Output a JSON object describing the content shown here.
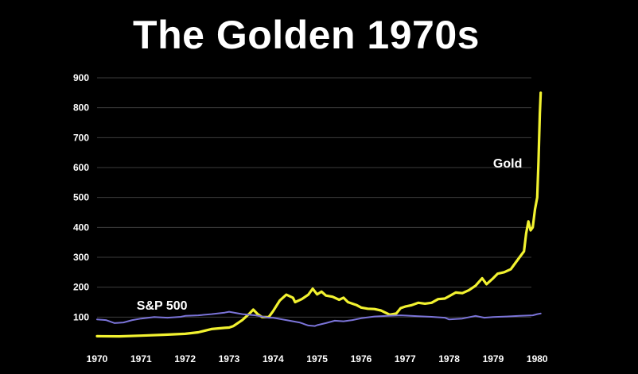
{
  "chart_data": {
    "type": "line",
    "title": "The Golden 1970s",
    "xlabel": "",
    "ylabel": "",
    "xlim": [
      1970,
      1980.3
    ],
    "ylim": [
      0,
      900
    ],
    "x_ticks": [
      1970,
      1971,
      1972,
      1973,
      1974,
      1975,
      1976,
      1977,
      1978,
      1979,
      1980
    ],
    "y_ticks": [
      100,
      200,
      300,
      400,
      500,
      600,
      700,
      800,
      900
    ],
    "grid": true,
    "series": [
      {
        "name": "Gold",
        "color": "#f2f230",
        "label_at": [
          1979.0,
          600
        ],
        "points": [
          [
            1970.0,
            36
          ],
          [
            1970.5,
            35.5
          ],
          [
            1971.0,
            38
          ],
          [
            1971.5,
            41
          ],
          [
            1972.0,
            44
          ],
          [
            1972.3,
            49
          ],
          [
            1972.6,
            60
          ],
          [
            1972.9,
            64
          ],
          [
            1973.0,
            65
          ],
          [
            1973.1,
            70
          ],
          [
            1973.3,
            90
          ],
          [
            1973.45,
            110
          ],
          [
            1973.55,
            125
          ],
          [
            1973.65,
            110
          ],
          [
            1973.75,
            100
          ],
          [
            1973.9,
            100
          ],
          [
            1974.0,
            120
          ],
          [
            1974.15,
            155
          ],
          [
            1974.3,
            175
          ],
          [
            1974.45,
            165
          ],
          [
            1974.5,
            150
          ],
          [
            1974.65,
            160
          ],
          [
            1974.8,
            175
          ],
          [
            1974.9,
            195
          ],
          [
            1975.0,
            176
          ],
          [
            1975.1,
            185
          ],
          [
            1975.2,
            172
          ],
          [
            1975.35,
            168
          ],
          [
            1975.5,
            158
          ],
          [
            1975.6,
            165
          ],
          [
            1975.7,
            150
          ],
          [
            1975.8,
            145
          ],
          [
            1975.9,
            140
          ],
          [
            1976.0,
            132
          ],
          [
            1976.15,
            128
          ],
          [
            1976.3,
            127
          ],
          [
            1976.45,
            122
          ],
          [
            1976.55,
            115
          ],
          [
            1976.65,
            108
          ],
          [
            1976.8,
            112
          ],
          [
            1976.9,
            130
          ],
          [
            1977.0,
            135
          ],
          [
            1977.15,
            140
          ],
          [
            1977.3,
            148
          ],
          [
            1977.45,
            145
          ],
          [
            1977.6,
            148
          ],
          [
            1977.75,
            160
          ],
          [
            1977.9,
            162
          ],
          [
            1978.0,
            170
          ],
          [
            1978.15,
            182
          ],
          [
            1978.3,
            180
          ],
          [
            1978.45,
            190
          ],
          [
            1978.6,
            205
          ],
          [
            1978.75,
            230
          ],
          [
            1978.85,
            210
          ],
          [
            1979.0,
            230
          ],
          [
            1979.1,
            245
          ],
          [
            1979.25,
            250
          ],
          [
            1979.4,
            260
          ],
          [
            1979.5,
            280
          ],
          [
            1979.6,
            300
          ],
          [
            1979.7,
            320
          ],
          [
            1979.75,
            380
          ],
          [
            1979.8,
            420
          ],
          [
            1979.85,
            390
          ],
          [
            1979.9,
            400
          ],
          [
            1979.95,
            460
          ],
          [
            1980.0,
            500
          ],
          [
            1980.03,
            620
          ],
          [
            1980.06,
            780
          ],
          [
            1980.08,
            850
          ]
        ]
      },
      {
        "name": "S&P 500",
        "color": "#7b74d9",
        "label_at": [
          1970.9,
          125
        ],
        "points": [
          [
            1970.0,
            92
          ],
          [
            1970.2,
            90
          ],
          [
            1970.4,
            80
          ],
          [
            1970.6,
            82
          ],
          [
            1970.8,
            90
          ],
          [
            1971.0,
            95
          ],
          [
            1971.3,
            100
          ],
          [
            1971.6,
            98
          ],
          [
            1971.9,
            101
          ],
          [
            1972.0,
            104
          ],
          [
            1972.3,
            106
          ],
          [
            1972.6,
            110
          ],
          [
            1972.9,
            115
          ],
          [
            1973.0,
            118
          ],
          [
            1973.3,
            110
          ],
          [
            1973.6,
            106
          ],
          [
            1973.9,
            98
          ],
          [
            1974.0,
            98
          ],
          [
            1974.3,
            90
          ],
          [
            1974.6,
            82
          ],
          [
            1974.8,
            72
          ],
          [
            1974.95,
            70
          ],
          [
            1975.0,
            73
          ],
          [
            1975.2,
            80
          ],
          [
            1975.4,
            88
          ],
          [
            1975.6,
            86
          ],
          [
            1975.8,
            90
          ],
          [
            1976.0,
            96
          ],
          [
            1976.3,
            102
          ],
          [
            1976.6,
            104
          ],
          [
            1976.9,
            106
          ],
          [
            1977.0,
            105
          ],
          [
            1977.3,
            103
          ],
          [
            1977.6,
            101
          ],
          [
            1977.9,
            98
          ],
          [
            1978.0,
            92
          ],
          [
            1978.3,
            95
          ],
          [
            1978.6,
            104
          ],
          [
            1978.8,
            98
          ],
          [
            1979.0,
            100
          ],
          [
            1979.3,
            102
          ],
          [
            1979.6,
            104
          ],
          [
            1979.9,
            106
          ],
          [
            1980.0,
            110
          ],
          [
            1980.08,
            112
          ]
        ]
      }
    ]
  }
}
